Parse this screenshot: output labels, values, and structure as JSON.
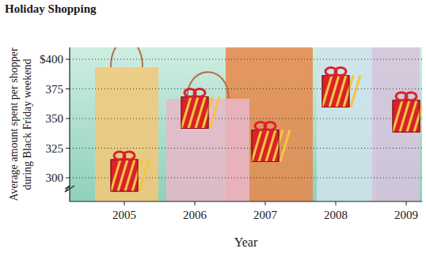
{
  "chart_data": {
    "type": "scatter",
    "title": "Holiday Shopping",
    "x_label": "Year",
    "y_label": "Average amount spent per shopper during Black Friday weekend",
    "categories": [
      "2005",
      "2006",
      "2007",
      "2008",
      "2009"
    ],
    "values": [
      302,
      355,
      327,
      373,
      352
    ],
    "marker": "gift",
    "color": "#d8232a",
    "ylim": [
      280,
      410
    ],
    "yticks": [
      300,
      325,
      350,
      375,
      {
        "value": 400,
        "label": "$400"
      }
    ],
    "grid": true
  }
}
